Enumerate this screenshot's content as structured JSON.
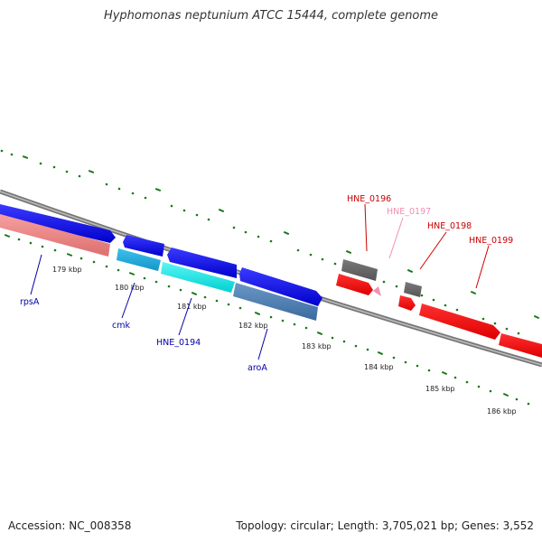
{
  "title": "Hyphomonas neptunium ATCC 15444, complete genome",
  "footer": {
    "accession": "Accession: NC_008358",
    "topology": "Topology: circular; Length: 3,705,021 bp; Genes: 3,552"
  },
  "colors": {
    "background": "#ffffff",
    "backbone": "#888888",
    "tick_green": "#1a7a1a",
    "label_blue": "#0000aa",
    "label_red": "#cc0000",
    "label_pink": "#f08fb0"
  },
  "scale": {
    "tick_labels": [
      "179 kbp",
      "180 kbp",
      "181 kbp",
      "182 kbp",
      "183 kbp",
      "184 kbp",
      "185 kbp",
      "186 kbp"
    ]
  },
  "genes": [
    {
      "label": "rpsA",
      "color": "#f08080",
      "label_color": "#0000aa"
    },
    {
      "label": "cmk",
      "color": "#1eaadd",
      "label_color": "#0000aa"
    },
    {
      "label": "HNE_0194",
      "color": "#00e5e5",
      "label_color": "#0000aa"
    },
    {
      "label": "aroA",
      "color": "#4a7eb5",
      "label_color": "#0000aa"
    },
    {
      "label": "HNE_0196",
      "color": "#666666",
      "label_color": "#cc0000"
    },
    {
      "label": "HNE_0197",
      "color": "#f08fb0",
      "label_color": "#f08fb0"
    },
    {
      "label": "HNE_0198",
      "color": "#666666",
      "label_color": "#cc0000"
    },
    {
      "label": "HNE_0199",
      "color": "#ee0000",
      "label_color": "#cc0000"
    }
  ]
}
